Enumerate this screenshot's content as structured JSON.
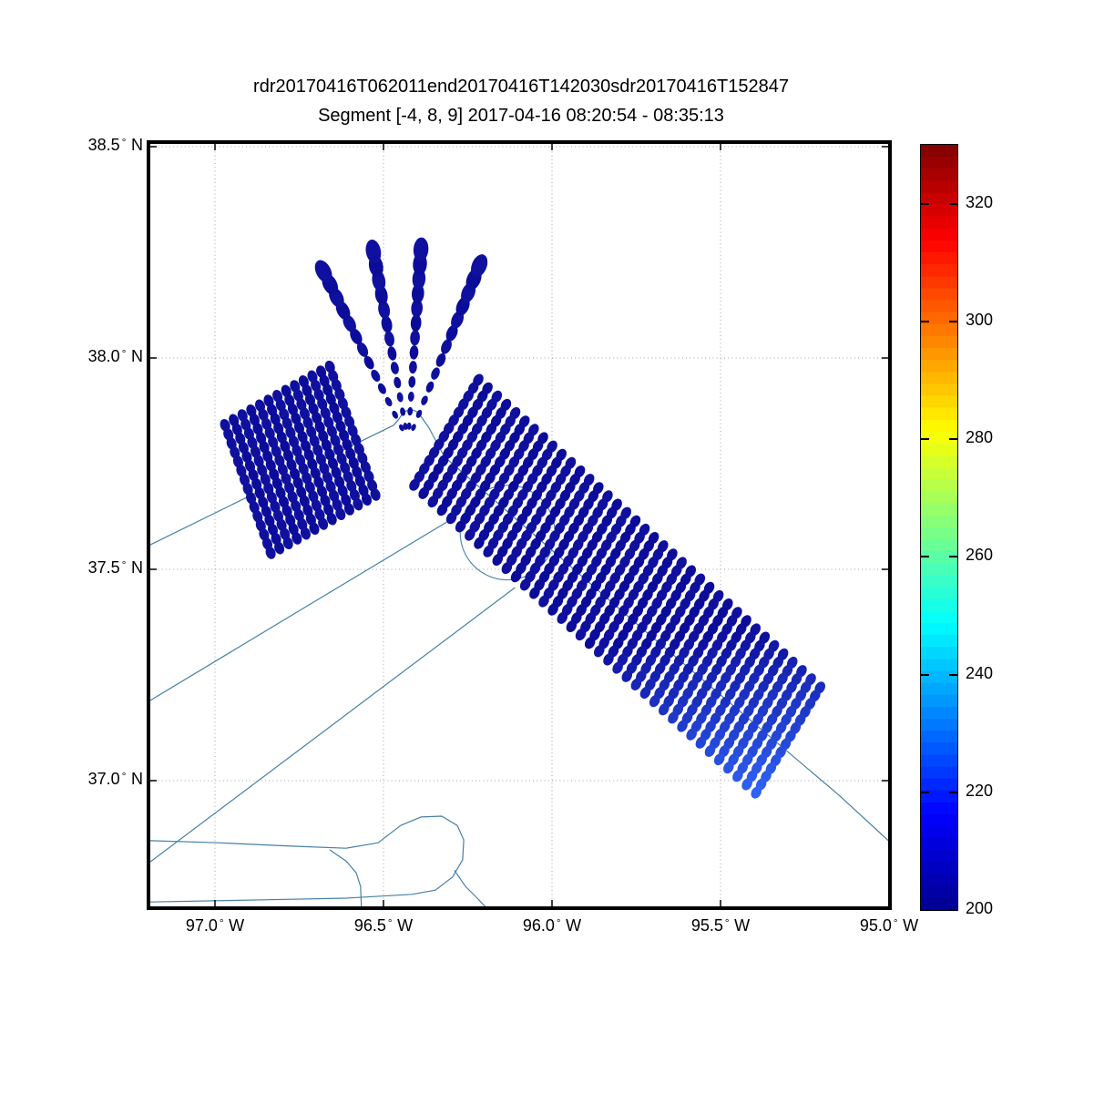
{
  "figure": {
    "title": "rdr20170416T062011end20170416T142030sdr20170416T152847",
    "subtitle": "Segment [-4, 8, 9] 2017-04-16 08:20:54 - 08:35:13"
  },
  "axes": {
    "x": {
      "hemisphere": "W",
      "ticks": [
        "97.0",
        "96.5",
        "96.0",
        "95.5",
        "95.0"
      ],
      "tick_values": [
        -97.0,
        -96.5,
        -96.0,
        -95.5,
        -95.0
      ],
      "range_lon": [
        -97.19,
        -95.0
      ]
    },
    "y": {
      "hemisphere": "N",
      "ticks": [
        "38.5",
        "38.0",
        "37.5",
        "37.0"
      ],
      "tick_values": [
        38.5,
        38.0,
        37.5,
        37.0
      ],
      "range_lat": [
        36.7,
        38.51
      ]
    },
    "grid_style": "dotted"
  },
  "colorbar": {
    "min": 200,
    "max": 330,
    "ticks": [
      320,
      300,
      280,
      260,
      240,
      220,
      200
    ],
    "colormap": "jet",
    "stops": [
      [
        0.0,
        "#00008f"
      ],
      [
        0.125,
        "#0000ff"
      ],
      [
        0.375,
        "#00ffff"
      ],
      [
        0.625,
        "#ffff00"
      ],
      [
        0.875,
        "#ff0000"
      ],
      [
        1.0,
        "#800000"
      ]
    ]
  },
  "chart_data": {
    "type": "scatter",
    "title": "rdr20170416T062011end20170416T142030sdr20170416T152847",
    "subtitle": "Segment [-4, 8, 9] 2017-04-16 08:20:54 - 08:35:13",
    "legend": "colorbar 200-330 (jet), observed values ~200-225 (dark blue to blue)",
    "colors": {
      "dot_navy_a": "#0c0c9a",
      "dot_navy_b": "#10109f",
      "dot_light": "#2f62f5",
      "track": "#4580a5",
      "grid": "#a0a0a0"
    },
    "groups": [
      {
        "name": "fan-rays",
        "shape": "radial-fan",
        "origin": [
          -96.427,
          37.804
        ],
        "ray_ends": [
          [
            -96.678,
            38.205
          ],
          [
            -96.53,
            38.252
          ],
          [
            -96.389,
            38.257
          ],
          [
            -96.216,
            38.218
          ]
        ],
        "points_per_ray": 13,
        "dot_ry_min": 3.2,
        "dot_ry_max": 13.2,
        "dot_aspect": 0.62
      },
      {
        "name": "left-block",
        "shape": "stripe-parallelogram",
        "edge_start": [
          -96.97,
          37.841
        ],
        "edge_end": [
          -96.659,
          37.979
        ],
        "stripe_delta": [
          0.135,
          -0.302
        ],
        "n_stripes": 13,
        "points_per_stripe": 15,
        "dot_rx": 5.3,
        "dot_ry": 7.0
      },
      {
        "name": "main-swath",
        "shape": "stripe-parallelogram",
        "edge_start": [
          -96.219,
          37.948
        ],
        "edge_end": [
          -95.205,
          37.22
        ],
        "stripe_delta": [
          -0.189,
          -0.248
        ],
        "n_stripes": 38,
        "points_per_stripe": 14,
        "dot_rx": 5.3,
        "dot_ry": 7.0,
        "light_corner": {
          "stripe_weight": 1.0,
          "along_weight": 0.3,
          "threshold": 0.82,
          "span": 0.48
        }
      }
    ],
    "flight_track": {
      "polylines": [
        [
          [
            -97.192,
            37.558
          ],
          [
            -96.47,
            37.841
          ],
          [
            -96.455,
            37.855
          ],
          [
            -96.44,
            37.872
          ],
          [
            -96.42,
            37.879
          ],
          [
            -96.398,
            37.872
          ],
          [
            -96.366,
            37.836
          ],
          [
            -96.319,
            37.766
          ],
          [
            -95.746,
            37.369
          ],
          [
            -95.149,
            36.966
          ],
          [
            -95.002,
            36.858
          ]
        ],
        [
          [
            -97.2,
            37.186
          ],
          [
            -96.314,
            37.611
          ]
        ],
        [
          [
            -97.2,
            36.803
          ],
          [
            -96.111,
            37.456
          ]
        ],
        [
          [
            -97.192,
            36.858
          ],
          [
            -96.989,
            36.853
          ],
          [
            -96.773,
            36.845
          ],
          [
            -96.611,
            36.84
          ],
          [
            -96.516,
            36.853
          ],
          [
            -96.449,
            36.894
          ],
          [
            -96.389,
            36.914
          ],
          [
            -96.327,
            36.916
          ],
          [
            -96.281,
            36.894
          ],
          [
            -96.262,
            36.86
          ],
          [
            -96.265,
            36.813
          ],
          [
            -96.295,
            36.772
          ],
          [
            -96.346,
            36.741
          ],
          [
            -96.416,
            36.731
          ],
          [
            -96.611,
            36.722
          ],
          [
            -96.854,
            36.718
          ],
          [
            -97.192,
            36.713
          ]
        ],
        [
          [
            -96.659,
            36.836
          ],
          [
            -96.611,
            36.81
          ],
          [
            -96.581,
            36.782
          ],
          [
            -96.568,
            36.75
          ],
          [
            -96.565,
            36.69
          ]
        ],
        [
          [
            -96.289,
            36.787
          ],
          [
            -96.257,
            36.75
          ],
          [
            -96.222,
            36.722
          ],
          [
            -96.184,
            36.69
          ]
        ]
      ],
      "turn_circle": {
        "center": [
          -96.132,
          37.587
        ],
        "radius_px": 52
      }
    }
  }
}
